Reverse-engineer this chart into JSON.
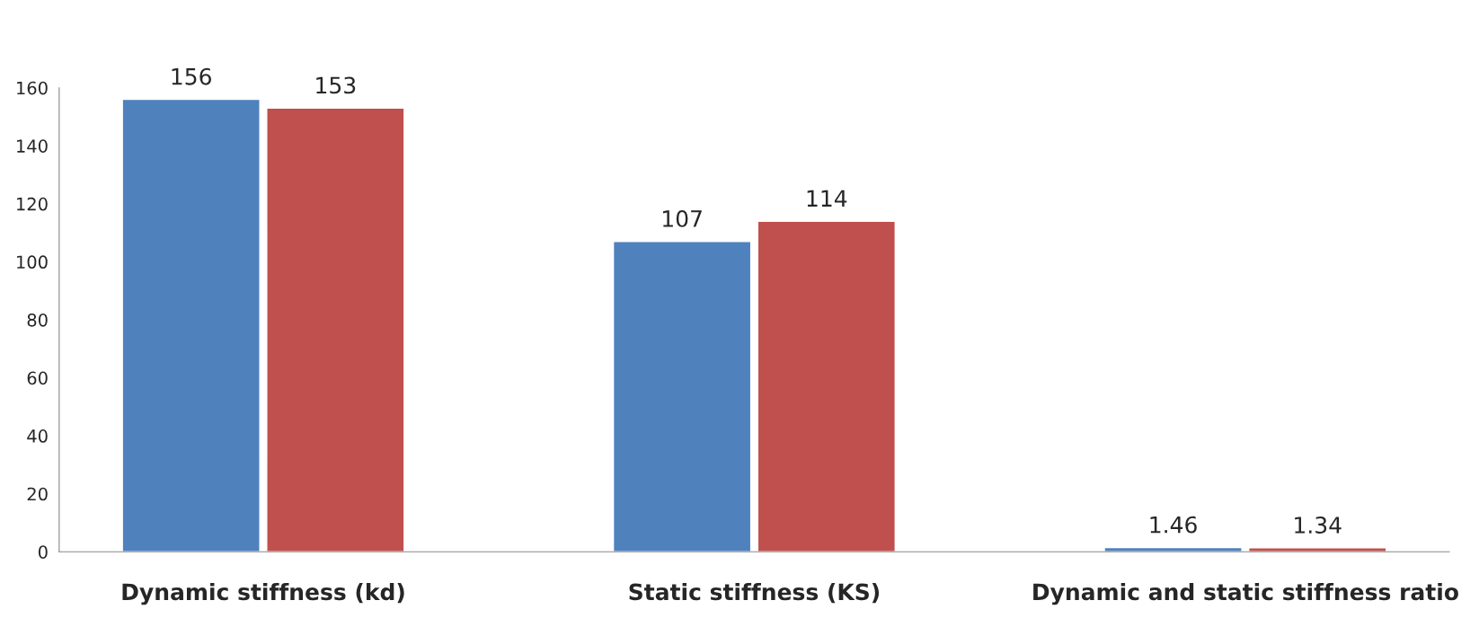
{
  "chart_data": {
    "type": "bar",
    "categories": [
      "Dynamic stiffness (kd)",
      "Static stiffness (KS)",
      "Dynamic and static stiffness ratio"
    ],
    "series": [
      {
        "color": "#4f81bd",
        "values": [
          156,
          107,
          1.46
        ]
      },
      {
        "color": "#c0504d",
        "values": [
          153,
          114,
          1.34
        ]
      }
    ],
    "ylim": [
      0,
      160
    ],
    "yticks": [
      0,
      20,
      40,
      60,
      80,
      100,
      120,
      140,
      160
    ],
    "data_labels": true,
    "grid": false,
    "legend": false
  }
}
